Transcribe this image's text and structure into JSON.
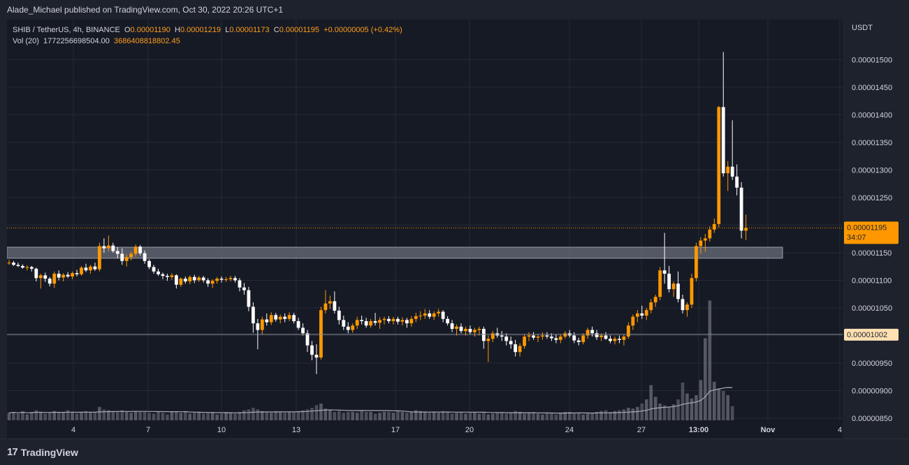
{
  "header": {
    "publisher": "Alade_Michael published on TradingView.com, Oct 30, 2022 20:26 UTC+1"
  },
  "legend": {
    "symbol": "SHIB / TetherUS, 4h, BINANCE",
    "o_label": "O",
    "o_value": "0.00001190",
    "h_label": "H",
    "h_value": "0.00001219",
    "l_label": "L",
    "l_value": "0.00001173",
    "c_label": "C",
    "c_value": "0.00001195",
    "change": "+0.00000005 (+0.42%)",
    "vol_label": "Vol (20)",
    "vol_value": "1772256698504.00",
    "vol_ma": "3686408818802.45"
  },
  "colors": {
    "up": "#ff9800",
    "down": "#ffffff",
    "background": "#161a25",
    "grid": "#262a35",
    "zone": "#6a6e79",
    "current_price_line": "#ff9800",
    "level_line": "#8a8e98",
    "volume_bar": "#5d6068",
    "volume_ma": "#a8abb3"
  },
  "footer": {
    "brand": "TradingView",
    "brand_icon": "tradingview-logo-icon"
  },
  "chart_data": {
    "type": "candlestick",
    "title": "SHIB / TetherUS, 4h, BINANCE",
    "y_unit": "USDT",
    "ylim": [
      8.5e-06,
      1.56e-05
    ],
    "y_ticks": [
      "0.00000850",
      "0.00000900",
      "0.00000950",
      "0.00001000",
      "0.00001050",
      "0.00001100",
      "0.00001150",
      "0.00001200",
      "0.00001250",
      "0.00001300",
      "0.00001350",
      "0.00001400",
      "0.00001450",
      "0.00001500"
    ],
    "x_labels": [
      "4",
      "7",
      "10",
      "13",
      "17",
      "20",
      "24",
      "27",
      "13:00",
      "Nov",
      "4"
    ],
    "grid": true,
    "current_price": {
      "value": 1.195e-05,
      "label": "0.00001195",
      "countdown": "34:07"
    },
    "level_line": {
      "value": 1.002e-05,
      "label": "0.00001002"
    },
    "zone": {
      "low": 1.14e-05,
      "high": 1.16e-05
    },
    "candle_index_start": 0,
    "candles": [
      [
        1131,
        1137,
        1128,
        1132
      ],
      [
        1132,
        1135,
        1126,
        1128
      ],
      [
        1128,
        1132,
        1124,
        1126
      ],
      [
        1126,
        1129,
        1121,
        1123
      ],
      [
        1123,
        1127,
        1118,
        1124
      ],
      [
        1124,
        1126,
        1116,
        1121
      ],
      [
        1121,
        1123,
        1098,
        1104
      ],
      [
        1104,
        1112,
        1085,
        1109
      ],
      [
        1109,
        1114,
        1097,
        1103
      ],
      [
        1103,
        1106,
        1089,
        1094
      ],
      [
        1094,
        1116,
        1086,
        1112
      ],
      [
        1112,
        1118,
        1100,
        1105
      ],
      [
        1105,
        1113,
        1098,
        1110
      ],
      [
        1110,
        1115,
        1104,
        1107
      ],
      [
        1107,
        1116,
        1102,
        1113
      ],
      [
        1113,
        1119,
        1107,
        1111
      ],
      [
        1111,
        1126,
        1108,
        1123
      ],
      [
        1123,
        1130,
        1115,
        1118
      ],
      [
        1118,
        1128,
        1112,
        1125
      ],
      [
        1125,
        1132,
        1117,
        1120
      ],
      [
        1120,
        1168,
        1116,
        1162
      ],
      [
        1162,
        1176,
        1150,
        1158
      ],
      [
        1158,
        1181,
        1152,
        1163
      ],
      [
        1163,
        1168,
        1150,
        1153
      ],
      [
        1153,
        1160,
        1140,
        1148
      ],
      [
        1148,
        1158,
        1128,
        1135
      ],
      [
        1135,
        1147,
        1125,
        1142
      ],
      [
        1142,
        1152,
        1136,
        1148
      ],
      [
        1148,
        1165,
        1143,
        1161
      ],
      [
        1161,
        1164,
        1145,
        1149
      ],
      [
        1149,
        1154,
        1130,
        1135
      ],
      [
        1135,
        1138,
        1120,
        1124
      ],
      [
        1124,
        1128,
        1112,
        1116
      ],
      [
        1116,
        1121,
        1108,
        1111
      ],
      [
        1111,
        1114,
        1102,
        1108
      ],
      [
        1108,
        1112,
        1099,
        1106
      ],
      [
        1106,
        1113,
        1101,
        1109
      ],
      [
        1109,
        1111,
        1085,
        1092
      ],
      [
        1092,
        1105,
        1088,
        1103
      ],
      [
        1103,
        1107,
        1094,
        1098
      ],
      [
        1098,
        1109,
        1093,
        1106
      ],
      [
        1106,
        1110,
        1095,
        1100
      ],
      [
        1100,
        1108,
        1097,
        1105
      ],
      [
        1105,
        1108,
        1096,
        1100
      ],
      [
        1100,
        1104,
        1088,
        1094
      ],
      [
        1094,
        1102,
        1086,
        1099
      ],
      [
        1099,
        1106,
        1094,
        1103
      ],
      [
        1103,
        1107,
        1096,
        1101
      ],
      [
        1101,
        1106,
        1097,
        1102
      ],
      [
        1102,
        1108,
        1098,
        1104
      ],
      [
        1104,
        1108,
        1096,
        1100
      ],
      [
        1100,
        1104,
        1080,
        1087
      ],
      [
        1087,
        1095,
        1074,
        1082
      ],
      [
        1082,
        1088,
        1044,
        1052
      ],
      [
        1052,
        1060,
        1005,
        1022
      ],
      [
        1022,
        1030,
        975,
        1010
      ],
      [
        1010,
        1034,
        1002,
        1029
      ],
      [
        1029,
        1040,
        1018,
        1024
      ],
      [
        1024,
        1042,
        1019,
        1037
      ],
      [
        1037,
        1041,
        1025,
        1029
      ],
      [
        1029,
        1038,
        1022,
        1034
      ],
      [
        1034,
        1040,
        1024,
        1030
      ],
      [
        1030,
        1042,
        1026,
        1037
      ],
      [
        1037,
        1041,
        1022,
        1026
      ],
      [
        1026,
        1032,
        1010,
        1014
      ],
      [
        1014,
        1022,
        1000,
        1004
      ],
      [
        1004,
        1010,
        970,
        982
      ],
      [
        982,
        990,
        955,
        965
      ],
      [
        965,
        984,
        930,
        960
      ],
      [
        960,
        1052,
        956,
        1046
      ],
      [
        1046,
        1082,
        1040,
        1058
      ],
      [
        1058,
        1072,
        1048,
        1062
      ],
      [
        1062,
        1080,
        1040,
        1045
      ],
      [
        1045,
        1052,
        1020,
        1028
      ],
      [
        1028,
        1036,
        1010,
        1016
      ],
      [
        1016,
        1024,
        1004,
        1010
      ],
      [
        1010,
        1022,
        1005,
        1018
      ],
      [
        1018,
        1034,
        1012,
        1028
      ],
      [
        1028,
        1036,
        1020,
        1026
      ],
      [
        1026,
        1032,
        1014,
        1018
      ],
      [
        1018,
        1030,
        1014,
        1026
      ],
      [
        1026,
        1041,
        1018,
        1023
      ],
      [
        1023,
        1033,
        1012,
        1028
      ],
      [
        1028,
        1034,
        1020,
        1030
      ],
      [
        1030,
        1035,
        1022,
        1026
      ],
      [
        1026,
        1034,
        1020,
        1030
      ],
      [
        1030,
        1034,
        1020,
        1025
      ],
      [
        1025,
        1033,
        1018,
        1028
      ],
      [
        1028,
        1032,
        1014,
        1022
      ],
      [
        1022,
        1035,
        1016,
        1030
      ],
      [
        1030,
        1041,
        1024,
        1035
      ],
      [
        1035,
        1044,
        1028,
        1036
      ],
      [
        1036,
        1048,
        1030,
        1040
      ],
      [
        1040,
        1046,
        1030,
        1034
      ],
      [
        1034,
        1044,
        1028,
        1040
      ],
      [
        1040,
        1048,
        1034,
        1043
      ],
      [
        1043,
        1046,
        1024,
        1030
      ],
      [
        1030,
        1035,
        1018,
        1022
      ],
      [
        1022,
        1028,
        1006,
        1012
      ],
      [
        1012,
        1020,
        1000,
        1016
      ],
      [
        1016,
        1022,
        1004,
        1008
      ],
      [
        1008,
        1016,
        1000,
        1012
      ],
      [
        1012,
        1018,
        1002,
        1006
      ],
      [
        1006,
        1014,
        998,
        1010
      ],
      [
        1010,
        1016,
        1000,
        1012
      ],
      [
        1012,
        1016,
        976,
        990
      ],
      [
        990,
        1000,
        952,
        994
      ],
      [
        994,
        1008,
        988,
        1004
      ],
      [
        1004,
        1014,
        996,
        1000
      ],
      [
        1000,
        1008,
        990,
        998
      ],
      [
        998,
        1004,
        982,
        990
      ],
      [
        990,
        998,
        976,
        984
      ],
      [
        984,
        992,
        962,
        970
      ],
      [
        970,
        986,
        962,
        981
      ],
      [
        981,
        1002,
        976,
        998
      ],
      [
        998,
        1006,
        990,
        1000
      ],
      [
        1000,
        1006,
        992,
        996
      ],
      [
        996,
        1002,
        988,
        998
      ],
      [
        998,
        1006,
        992,
        1000
      ],
      [
        1000,
        1006,
        994,
        998
      ],
      [
        998,
        1004,
        990,
        995
      ],
      [
        995,
        1002,
        986,
        992
      ],
      [
        992,
        1002,
        986,
        998
      ],
      [
        998,
        1008,
        994,
        1004
      ],
      [
        1004,
        1010,
        996,
        1000
      ],
      [
        1000,
        1006,
        986,
        991
      ],
      [
        991,
        996,
        982,
        988
      ],
      [
        988,
        1004,
        984,
        1000
      ],
      [
        1000,
        1014,
        994,
        1010
      ],
      [
        1010,
        1016,
        998,
        1004
      ],
      [
        1004,
        1010,
        992,
        997
      ],
      [
        997,
        1004,
        990,
        1000
      ],
      [
        1000,
        1006,
        992,
        994
      ],
      [
        994,
        1000,
        986,
        990
      ],
      [
        990,
        998,
        984,
        994
      ],
      [
        994,
        1000,
        986,
        992
      ],
      [
        992,
        1002,
        982,
        998
      ],
      [
        998,
        1024,
        994,
        1018
      ],
      [
        1018,
        1038,
        1010,
        1034
      ],
      [
        1034,
        1046,
        1024,
        1040
      ],
      [
        1040,
        1054,
        1030,
        1036
      ],
      [
        1036,
        1050,
        1028,
        1046
      ],
      [
        1046,
        1066,
        1040,
        1060
      ],
      [
        1060,
        1074,
        1052,
        1070
      ],
      [
        1070,
        1124,
        1064,
        1118
      ],
      [
        1118,
        1186,
        1094,
        1112
      ],
      [
        1112,
        1126,
        1078,
        1084
      ],
      [
        1084,
        1098,
        1070,
        1094
      ],
      [
        1094,
        1116,
        1060,
        1066
      ],
      [
        1066,
        1074,
        1040,
        1046
      ],
      [
        1046,
        1060,
        1034,
        1056
      ],
      [
        1056,
        1112,
        1050,
        1104
      ],
      [
        1104,
        1168,
        1098,
        1162
      ],
      [
        1162,
        1178,
        1148,
        1172
      ],
      [
        1172,
        1184,
        1152,
        1176
      ],
      [
        1176,
        1198,
        1170,
        1192
      ],
      [
        1192,
        1212,
        1186,
        1202
      ],
      [
        1202,
        1416,
        1196,
        1414
      ],
      [
        1414,
        1514,
        1288,
        1294
      ],
      [
        1294,
        1316,
        1262,
        1306
      ],
      [
        1306,
        1390,
        1282,
        1288
      ],
      [
        1288,
        1310,
        1254,
        1268
      ],
      [
        1268,
        1278,
        1176,
        1190
      ],
      [
        1190,
        1219,
        1173,
        1195
      ]
    ],
    "volumes": [
      0.9,
      1.0,
      0.8,
      1.1,
      0.7,
      1.0,
      1.2,
      1.0,
      0.8,
      0.9,
      1.1,
      1.0,
      0.9,
      1.2,
      1.0,
      0.8,
      1.0,
      1.1,
      1.0,
      0.9,
      1.6,
      1.3,
      1.2,
      1.1,
      1.0,
      1.2,
      1.0,
      0.9,
      1.1,
      1.0,
      1.0,
      0.9,
      0.8,
      1.0,
      0.9,
      0.7,
      1.0,
      1.0,
      0.9,
      1.1,
      0.8,
      0.9,
      1.0,
      0.8,
      0.9,
      1.0,
      0.7,
      0.8,
      1.0,
      0.9,
      0.8,
      1.0,
      1.2,
      1.3,
      1.5,
      1.3,
      1.1,
      1.0,
      0.9,
      1.1,
      1.0,
      0.9,
      1.0,
      1.0,
      1.1,
      1.2,
      1.3,
      1.5,
      1.8,
      2.0,
      1.4,
      1.2,
      1.0,
      1.1,
      0.9,
      1.0,
      1.0,
      0.9,
      1.1,
      1.0,
      1.0,
      0.8,
      0.9,
      1.0,
      1.0,
      0.9,
      1.1,
      1.0,
      0.9,
      1.0,
      1.2,
      1.1,
      1.0,
      0.9,
      1.0,
      0.9,
      1.1,
      1.0,
      0.8,
      0.9,
      1.0,
      0.8,
      0.9,
      1.0,
      0.8,
      0.9,
      0.7,
      0.8,
      0.9,
      1.0,
      0.8,
      0.9,
      1.1,
      1.0,
      0.8,
      0.9,
      1.0,
      0.8,
      0.7,
      0.9,
      0.8,
      0.7,
      0.9,
      1.0,
      1.0,
      0.8,
      0.9,
      0.7,
      0.8,
      0.9,
      1.0,
      1.1,
      1.2,
      1.0,
      1.1,
      1.2,
      1.3,
      1.5,
      1.4,
      1.6,
      2.0,
      2.5,
      4.2,
      2.8,
      2.0,
      1.8,
      1.6,
      1.9,
      2.5,
      4.5,
      3.2,
      2.6,
      3.0,
      4.8,
      9.8,
      14.3,
      4.6,
      3.8,
      3.5,
      3.0,
      1.7
    ]
  }
}
